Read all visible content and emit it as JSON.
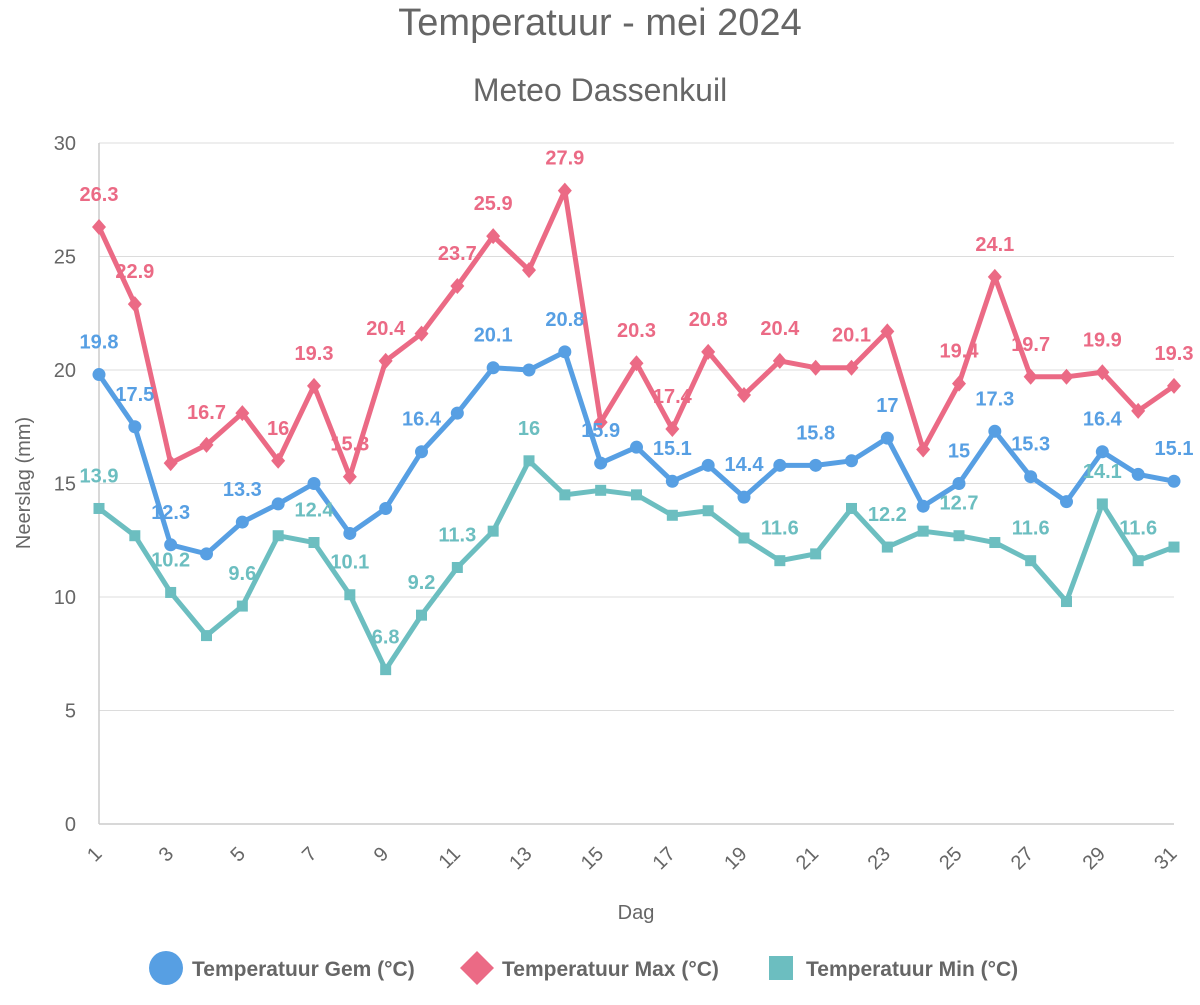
{
  "chart_data": {
    "type": "line",
    "title": "Temperatuur - mei 2024",
    "subtitle": "Meteo Dassenkuil",
    "xlabel": "Dag",
    "ylabel": "Neerslag (mm)",
    "ylim": [
      0,
      30
    ],
    "yticks": [
      0,
      5,
      10,
      15,
      20,
      25,
      30
    ],
    "x": [
      1,
      2,
      3,
      4,
      5,
      6,
      7,
      8,
      9,
      10,
      11,
      12,
      13,
      14,
      15,
      16,
      17,
      18,
      19,
      20,
      21,
      22,
      23,
      24,
      25,
      26,
      27,
      28,
      29,
      30,
      31
    ],
    "xtick_labels": [
      "1",
      "3",
      "5",
      "7",
      "9",
      "11",
      "13",
      "15",
      "17",
      "19",
      "21",
      "23",
      "25",
      "27",
      "29",
      "31"
    ],
    "grid": true,
    "legend_position": "bottom",
    "series": [
      {
        "name": "Temperatuur Gem (°C)",
        "color": "#579fe3",
        "marker": "circle",
        "values": [
          19.8,
          17.5,
          12.3,
          11.9,
          13.3,
          14.1,
          15.0,
          12.8,
          13.9,
          16.4,
          18.1,
          20.1,
          20.0,
          20.8,
          15.9,
          16.6,
          15.1,
          15.8,
          14.4,
          15.8,
          15.8,
          16.0,
          17.0,
          14.0,
          15.0,
          17.3,
          15.3,
          14.2,
          16.4,
          15.4,
          15.1
        ],
        "labeled_days": [
          1,
          2,
          3,
          5,
          10,
          12,
          14,
          15,
          17,
          19,
          21,
          23,
          25,
          26,
          27,
          29,
          31
        ]
      },
      {
        "name": "Temperatuur Max (°C)",
        "color": "#eb6a85",
        "marker": "diamond",
        "values": [
          26.3,
          22.9,
          15.9,
          16.7,
          18.1,
          16.0,
          19.3,
          15.3,
          20.4,
          21.6,
          23.7,
          25.9,
          24.4,
          27.9,
          17.7,
          20.3,
          17.4,
          20.8,
          18.9,
          20.4,
          20.1,
          20.1,
          21.7,
          16.5,
          19.4,
          24.1,
          19.7,
          19.7,
          19.9,
          18.2,
          19.3
        ],
        "labeled_days": [
          1,
          2,
          4,
          6,
          7,
          8,
          9,
          11,
          12,
          14,
          16,
          17,
          18,
          20,
          22,
          25,
          26,
          27,
          29,
          31
        ]
      },
      {
        "name": "Temperatuur Min (°C)",
        "color": "#6cbec0",
        "marker": "square",
        "values": [
          13.9,
          12.7,
          10.2,
          8.3,
          9.6,
          12.7,
          12.4,
          10.1,
          6.8,
          9.2,
          11.3,
          12.9,
          16.0,
          14.5,
          14.7,
          14.5,
          13.6,
          13.8,
          12.6,
          11.6,
          11.9,
          13.9,
          12.2,
          12.9,
          12.7,
          12.4,
          11.6,
          9.8,
          14.1,
          11.6,
          12.2
        ],
        "labeled_days": [
          1,
          3,
          5,
          7,
          8,
          9,
          10,
          11,
          13,
          20,
          23,
          25,
          27,
          29,
          30
        ]
      }
    ]
  }
}
